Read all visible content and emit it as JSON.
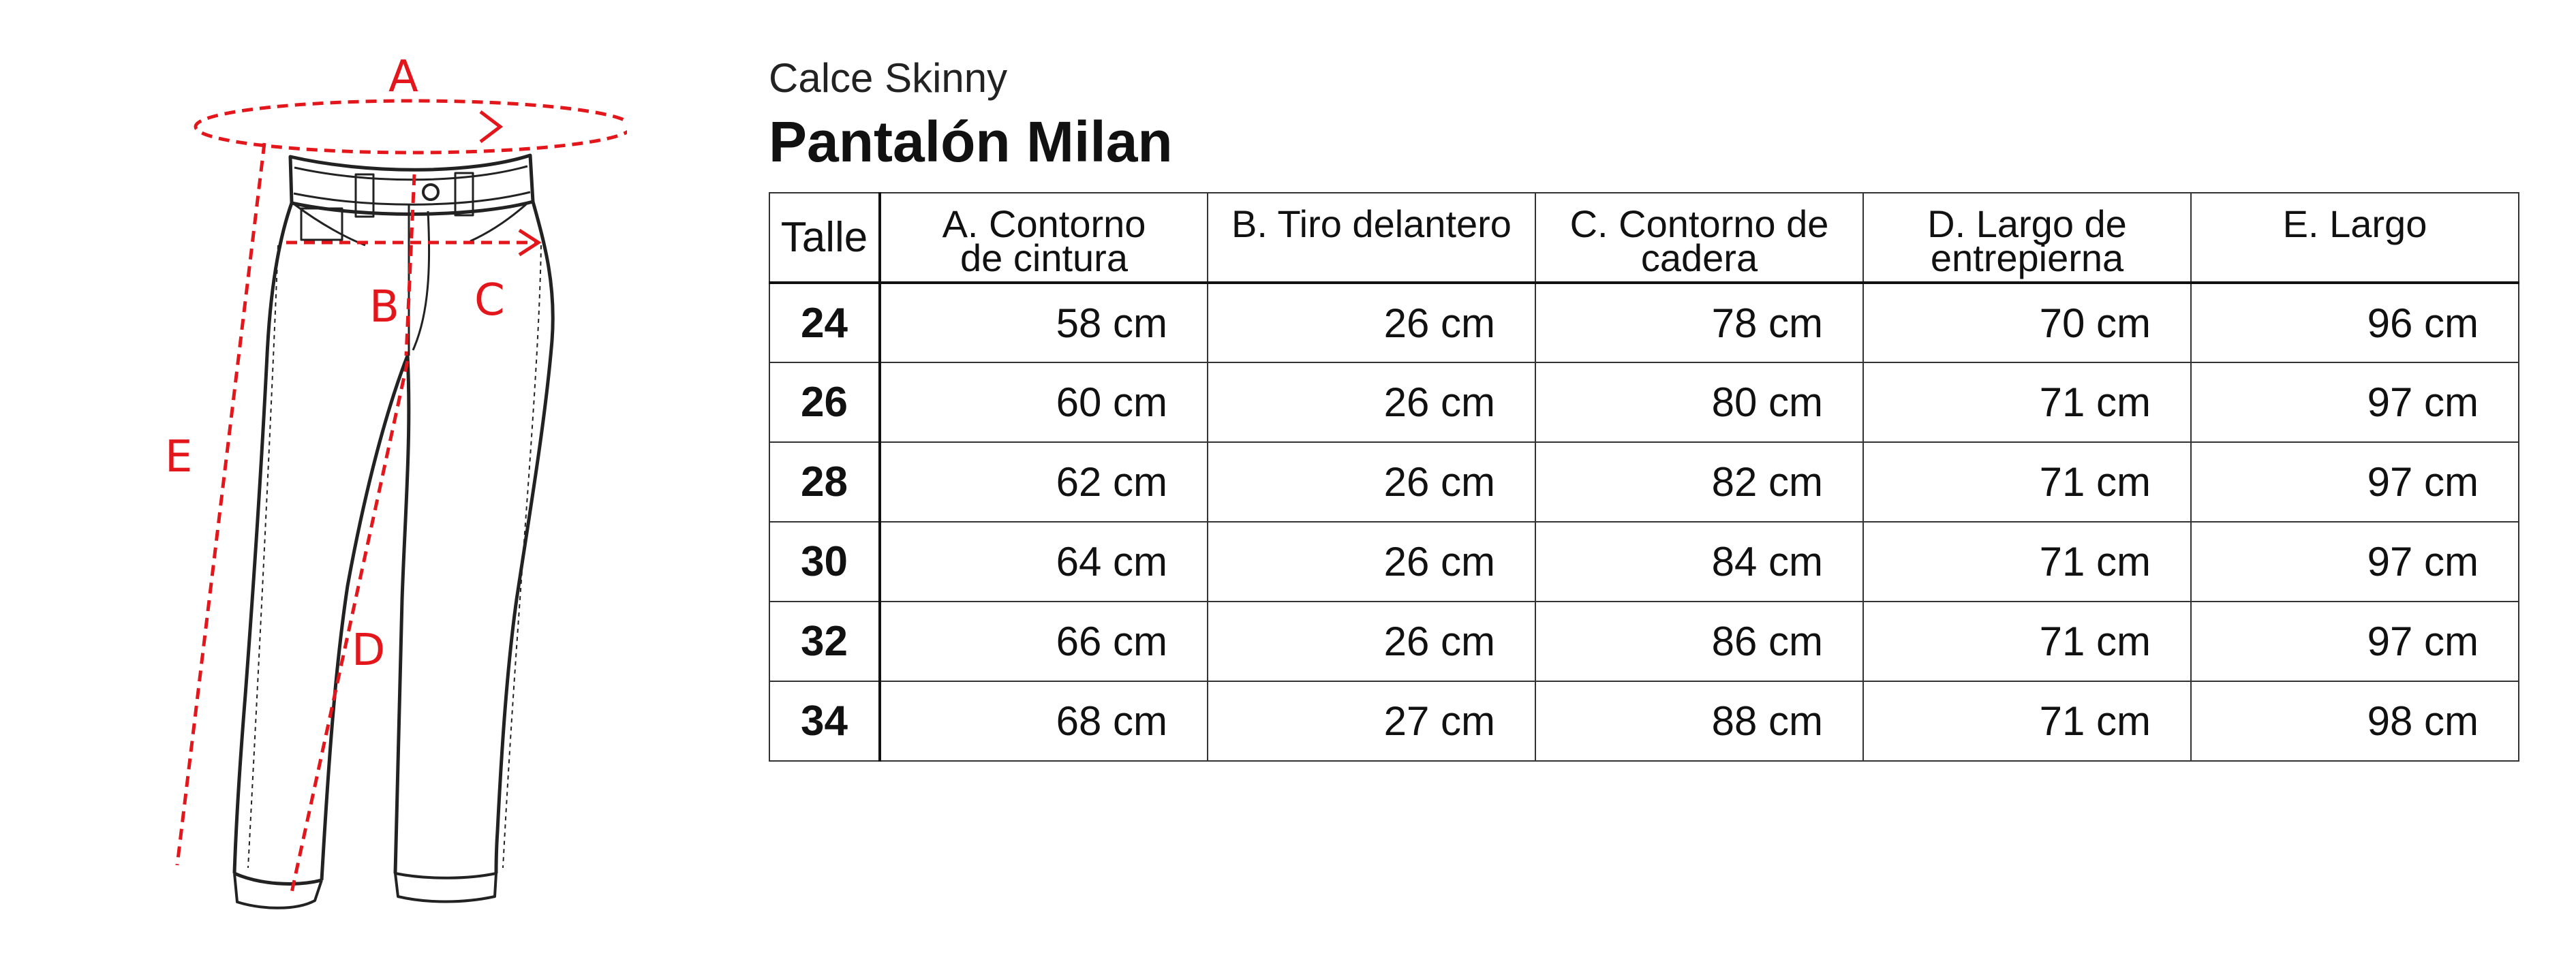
{
  "subtitle": "Calce Skinny",
  "title": "Pantalón Milan",
  "diagram": {
    "labels": {
      "a": "A",
      "b": "B",
      "c": "C",
      "d": "D",
      "e": "E"
    },
    "accent_color": "#e3161b"
  },
  "table": {
    "size_header": "Talle",
    "columns": [
      {
        "line1": "A. Contorno",
        "line2": "de cintura"
      },
      {
        "line1": "B. Tiro delantero",
        "line2": ""
      },
      {
        "line1": "C. Contorno de",
        "line2": "cadera"
      },
      {
        "line1": "D. Largo de",
        "line2": "entrepierna"
      },
      {
        "line1": "E. Largo",
        "line2": ""
      }
    ],
    "rows": [
      {
        "size": "24",
        "values": [
          "58 cm",
          "26 cm",
          "78 cm",
          "70 cm",
          "96 cm"
        ]
      },
      {
        "size": "26",
        "values": [
          "60 cm",
          "26 cm",
          "80 cm",
          "71 cm",
          "97 cm"
        ]
      },
      {
        "size": "28",
        "values": [
          "62 cm",
          "26 cm",
          "82 cm",
          "71 cm",
          "97 cm"
        ]
      },
      {
        "size": "30",
        "values": [
          "64 cm",
          "26 cm",
          "84 cm",
          "71 cm",
          "97 cm"
        ]
      },
      {
        "size": "32",
        "values": [
          "66 cm",
          "26 cm",
          "86 cm",
          "71 cm",
          "97 cm"
        ]
      },
      {
        "size": "34",
        "values": [
          "68 cm",
          "27 cm",
          "88 cm",
          "71 cm",
          "98 cm"
        ]
      }
    ]
  }
}
